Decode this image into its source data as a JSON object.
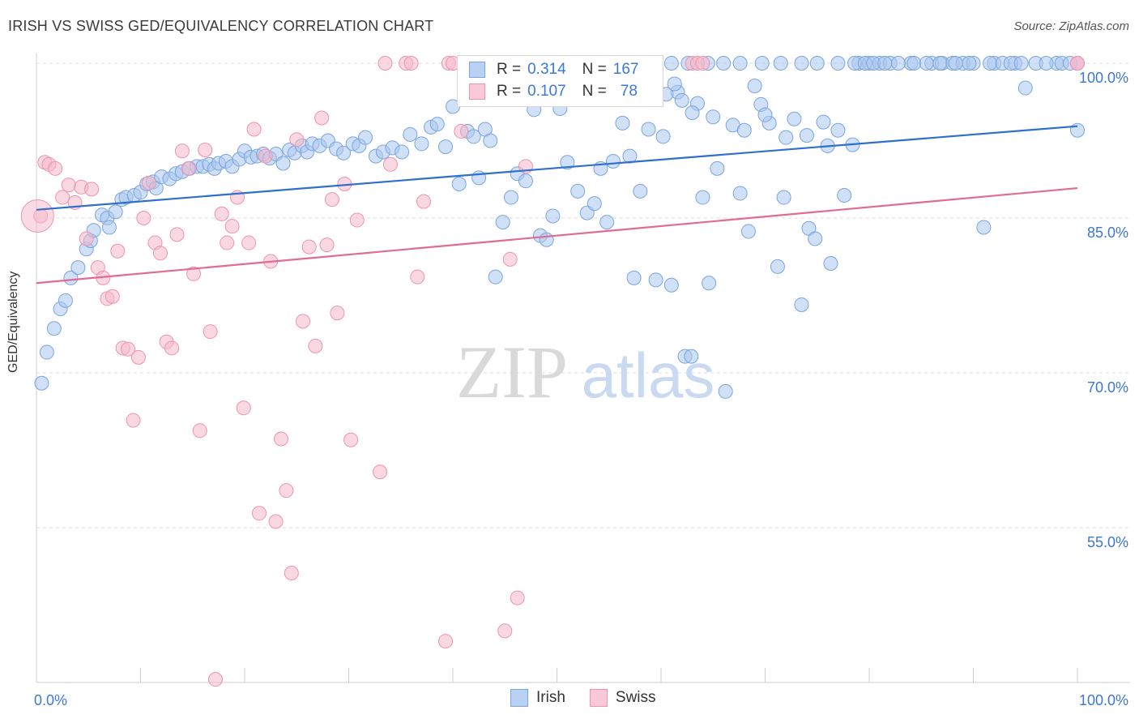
{
  "title": "IRISH VS SWISS GED/EQUIVALENCY CORRELATION CHART",
  "source": "Source: ZipAtlas.com",
  "watermark": {
    "zip": "ZIP",
    "atlas": "atlas"
  },
  "legend": {
    "irish": {
      "r_label": "R =",
      "r_value": "0.314",
      "n_label": "N =",
      "n_value": "167"
    },
    "swiss": {
      "r_label": "R =",
      "r_value": "0.107",
      "n_label": "N =",
      "n_value": "78"
    }
  },
  "bottom_legend": {
    "irish": "Irish",
    "swiss": "Swiss"
  },
  "colors": {
    "irish_fill": "#a9c6ee",
    "irish_stroke": "#7aa5df",
    "irish_line": "#2f6fcf",
    "swiss_fill": "#f6b8cb",
    "swiss_stroke": "#ee93ae",
    "swiss_line": "#e06c92",
    "tick_label": "#3b78d6"
  },
  "chart_data": {
    "type": "scatter",
    "title": "IRISH VS SWISS GED/EQUIVALENCY CORRELATION CHART",
    "xlabel": "",
    "ylabel": "GED/Equivalency",
    "xlim": [
      0,
      100
    ],
    "ylim": [
      40,
      100
    ],
    "x_tick_labels": [
      "0.0%",
      "100.0%"
    ],
    "y_ticks": [
      100,
      85,
      70,
      55
    ],
    "y_tick_labels": [
      "100.0%",
      "85.0%",
      "70.0%",
      "55.0%"
    ],
    "grid": true,
    "legend_position": "top-center",
    "series": [
      {
        "name": "Irish",
        "r": 0.314,
        "n": 167,
        "trend": {
          "x": [
            0,
            100
          ],
          "y": [
            85.8,
            93.9
          ]
        },
        "points": [
          [
            0.5,
            69.0
          ],
          [
            1.0,
            72.0
          ],
          [
            1.7,
            74.3
          ],
          [
            2.3,
            76.2
          ],
          [
            2.8,
            77.0
          ],
          [
            3.3,
            79.2
          ],
          [
            4.0,
            80.2
          ],
          [
            4.8,
            82.0
          ],
          [
            5.2,
            82.8
          ],
          [
            5.5,
            83.8
          ],
          [
            6.3,
            85.3
          ],
          [
            6.8,
            85.0
          ],
          [
            7.0,
            84.1
          ],
          [
            7.6,
            85.6
          ],
          [
            8.2,
            86.8
          ],
          [
            8.6,
            87.0
          ],
          [
            9.4,
            87.2
          ],
          [
            10.0,
            87.5
          ],
          [
            10.6,
            88.3
          ],
          [
            11.2,
            88.5
          ],
          [
            11.5,
            87.9
          ],
          [
            12.0,
            89.0
          ],
          [
            12.8,
            88.8
          ],
          [
            13.4,
            89.3
          ],
          [
            14.0,
            89.5
          ],
          [
            14.7,
            89.8
          ],
          [
            15.4,
            90.0
          ],
          [
            16.0,
            90.0
          ],
          [
            16.6,
            90.2
          ],
          [
            17.1,
            89.8
          ],
          [
            17.5,
            90.3
          ],
          [
            18.2,
            90.5
          ],
          [
            18.8,
            90.0
          ],
          [
            19.5,
            90.7
          ],
          [
            20.0,
            91.5
          ],
          [
            20.6,
            90.9
          ],
          [
            21.2,
            91.0
          ],
          [
            21.8,
            91.2
          ],
          [
            22.4,
            90.8
          ],
          [
            23.0,
            91.2
          ],
          [
            23.7,
            90.3
          ],
          [
            24.3,
            91.6
          ],
          [
            24.8,
            91.3
          ],
          [
            25.5,
            92.0
          ],
          [
            26.0,
            91.4
          ],
          [
            26.5,
            92.2
          ],
          [
            27.2,
            92.0
          ],
          [
            28.0,
            92.5
          ],
          [
            28.8,
            91.7
          ],
          [
            29.5,
            91.3
          ],
          [
            30.4,
            92.2
          ],
          [
            31.0,
            92.0
          ],
          [
            31.6,
            92.8
          ],
          [
            32.6,
            91.0
          ],
          [
            33.3,
            91.4
          ],
          [
            34.2,
            91.8
          ],
          [
            35.1,
            91.4
          ],
          [
            35.9,
            93.1
          ],
          [
            37.0,
            92.2
          ],
          [
            37.9,
            93.8
          ],
          [
            38.5,
            94.1
          ],
          [
            39.3,
            91.9
          ],
          [
            40.0,
            95.8
          ],
          [
            40.6,
            88.3
          ],
          [
            41.4,
            93.4
          ],
          [
            42.0,
            92.9
          ],
          [
            42.5,
            88.9
          ],
          [
            43.1,
            93.6
          ],
          [
            43.6,
            92.5
          ],
          [
            44.1,
            79.3
          ],
          [
            44.8,
            84.6
          ],
          [
            45.6,
            87.0
          ],
          [
            46.2,
            89.3
          ],
          [
            47.0,
            88.6
          ],
          [
            47.8,
            95.5
          ],
          [
            48.4,
            83.3
          ],
          [
            49.0,
            82.9
          ],
          [
            49.6,
            85.2
          ],
          [
            50.3,
            95.6
          ],
          [
            51.0,
            90.4
          ],
          [
            52.0,
            87.6
          ],
          [
            52.9,
            85.5
          ],
          [
            53.6,
            86.4
          ],
          [
            54.2,
            89.8
          ],
          [
            54.8,
            84.6
          ],
          [
            55.4,
            90.5
          ],
          [
            56.3,
            94.2
          ],
          [
            57.0,
            91.0
          ],
          [
            57.4,
            79.2
          ],
          [
            58.0,
            87.6
          ],
          [
            58.8,
            93.6
          ],
          [
            59.5,
            79.0
          ],
          [
            60.2,
            92.9
          ],
          [
            61.0,
            78.5
          ],
          [
            61.6,
            97.2
          ],
          [
            62.3,
            71.6
          ],
          [
            62.9,
            71.6
          ],
          [
            63.5,
            96.1
          ],
          [
            64.0,
            87.0
          ],
          [
            64.6,
            78.7
          ],
          [
            65.4,
            89.8
          ],
          [
            66.2,
            68.2
          ],
          [
            66.9,
            94.0
          ],
          [
            67.6,
            87.4
          ],
          [
            68.4,
            83.7
          ],
          [
            69.0,
            97.8
          ],
          [
            69.6,
            96.0
          ],
          [
            70.4,
            94.2
          ],
          [
            71.2,
            80.3
          ],
          [
            71.8,
            87.0
          ],
          [
            72.8,
            94.6
          ],
          [
            73.5,
            76.6
          ],
          [
            74.2,
            84.0
          ],
          [
            74.8,
            83.0
          ],
          [
            75.6,
            94.3
          ],
          [
            76.3,
            80.6
          ],
          [
            77.0,
            93.5
          ],
          [
            77.6,
            87.2
          ],
          [
            78.4,
            92.1
          ],
          [
            79.0,
            100.0
          ],
          [
            80.0,
            100.0
          ],
          [
            81.0,
            100.0
          ],
          [
            82.0,
            100.0
          ],
          [
            84.0,
            100.0
          ],
          [
            86.0,
            100.0
          ],
          [
            87.0,
            100.0
          ],
          [
            88.0,
            100.0
          ],
          [
            89.0,
            100.0
          ],
          [
            90.0,
            100.0
          ],
          [
            91.0,
            84.1
          ],
          [
            92.0,
            100.0
          ],
          [
            94.0,
            100.0
          ],
          [
            95.0,
            97.6
          ],
          [
            98.0,
            100.0
          ],
          [
            100.0,
            93.5
          ],
          [
            100.0,
            100.0
          ],
          [
            57.8,
            100.0
          ],
          [
            59.5,
            100.0
          ],
          [
            61.0,
            100.0
          ],
          [
            62.6,
            100.0
          ],
          [
            64.5,
            100.0
          ],
          [
            66.0,
            100.0
          ],
          [
            67.6,
            100.0
          ],
          [
            69.7,
            100.0
          ],
          [
            71.5,
            100.0
          ],
          [
            73.5,
            100.0
          ],
          [
            75.0,
            100.0
          ],
          [
            77.0,
            100.0
          ],
          [
            78.6,
            100.0
          ],
          [
            79.6,
            100.0
          ],
          [
            80.4,
            100.0
          ],
          [
            81.5,
            100.0
          ],
          [
            82.8,
            100.0
          ],
          [
            84.3,
            100.0
          ],
          [
            85.5,
            100.0
          ],
          [
            86.8,
            100.0
          ],
          [
            88.3,
            100.0
          ],
          [
            89.6,
            100.0
          ],
          [
            91.6,
            100.0
          ],
          [
            92.8,
            100.0
          ],
          [
            93.6,
            100.0
          ],
          [
            94.6,
            100.0
          ],
          [
            96.0,
            100.0
          ],
          [
            97.0,
            100.0
          ],
          [
            98.5,
            100.0
          ],
          [
            99.3,
            100.0
          ],
          [
            60.5,
            97.0
          ],
          [
            61.3,
            98.0
          ],
          [
            62.0,
            96.4
          ],
          [
            63.0,
            95.2
          ],
          [
            65.0,
            94.8
          ],
          [
            68.0,
            93.5
          ],
          [
            70.0,
            95.0
          ],
          [
            72.0,
            92.8
          ],
          [
            74.0,
            93.0
          ],
          [
            76.0,
            92.0
          ]
        ]
      },
      {
        "name": "Swiss",
        "r": 0.107,
        "n": 78,
        "trend": {
          "x": [
            0,
            100
          ],
          "y": [
            78.7,
            87.9
          ]
        },
        "points": [
          [
            0.4,
            85.2
          ],
          [
            0.8,
            90.4
          ],
          [
            1.2,
            90.2
          ],
          [
            1.8,
            89.8
          ],
          [
            2.5,
            87.0
          ],
          [
            3.1,
            88.2
          ],
          [
            3.7,
            86.5
          ],
          [
            4.3,
            88.0
          ],
          [
            4.8,
            83.0
          ],
          [
            5.3,
            87.8
          ],
          [
            5.9,
            80.2
          ],
          [
            6.4,
            79.2
          ],
          [
            6.8,
            77.2
          ],
          [
            7.3,
            77.4
          ],
          [
            7.8,
            81.8
          ],
          [
            8.3,
            72.4
          ],
          [
            8.8,
            72.3
          ],
          [
            9.3,
            65.4
          ],
          [
            9.8,
            71.5
          ],
          [
            10.3,
            85.0
          ],
          [
            10.8,
            88.4
          ],
          [
            11.4,
            82.6
          ],
          [
            11.9,
            81.6
          ],
          [
            12.5,
            73.0
          ],
          [
            13.0,
            72.4
          ],
          [
            13.5,
            83.4
          ],
          [
            14.0,
            91.5
          ],
          [
            14.6,
            89.8
          ],
          [
            15.1,
            79.6
          ],
          [
            15.7,
            64.4
          ],
          [
            16.2,
            91.6
          ],
          [
            16.7,
            74.0
          ],
          [
            17.2,
            40.3
          ],
          [
            17.8,
            85.4
          ],
          [
            18.3,
            82.6
          ],
          [
            18.8,
            84.2
          ],
          [
            19.3,
            87.0
          ],
          [
            19.9,
            66.6
          ],
          [
            20.4,
            82.6
          ],
          [
            20.9,
            93.6
          ],
          [
            21.4,
            56.4
          ],
          [
            22.0,
            91.0
          ],
          [
            22.5,
            80.8
          ],
          [
            23.0,
            55.6
          ],
          [
            23.5,
            63.6
          ],
          [
            24.0,
            58.6
          ],
          [
            24.5,
            50.6
          ],
          [
            25.0,
            92.6
          ],
          [
            25.6,
            75.0
          ],
          [
            26.2,
            82.2
          ],
          [
            26.8,
            72.6
          ],
          [
            27.4,
            94.7
          ],
          [
            27.9,
            82.4
          ],
          [
            28.4,
            86.8
          ],
          [
            28.9,
            75.8
          ],
          [
            29.6,
            88.3
          ],
          [
            30.2,
            63.5
          ],
          [
            30.8,
            84.8
          ],
          [
            33.0,
            60.4
          ],
          [
            33.5,
            100.0
          ],
          [
            34.0,
            90.2
          ],
          [
            35.5,
            100.0
          ],
          [
            36.0,
            100.0
          ],
          [
            36.6,
            79.3
          ],
          [
            37.2,
            86.6
          ],
          [
            39.3,
            44.0
          ],
          [
            39.6,
            100.0
          ],
          [
            40.0,
            100.0
          ],
          [
            40.8,
            93.4
          ],
          [
            45.0,
            45.0
          ],
          [
            45.5,
            81.0
          ],
          [
            46.2,
            48.2
          ],
          [
            47.0,
            90.0
          ],
          [
            63.0,
            100.0
          ],
          [
            63.5,
            100.0
          ],
          [
            64.0,
            100.0
          ],
          [
            100.0,
            100.0
          ],
          [
            100.0,
            100.0
          ]
        ]
      }
    ]
  }
}
